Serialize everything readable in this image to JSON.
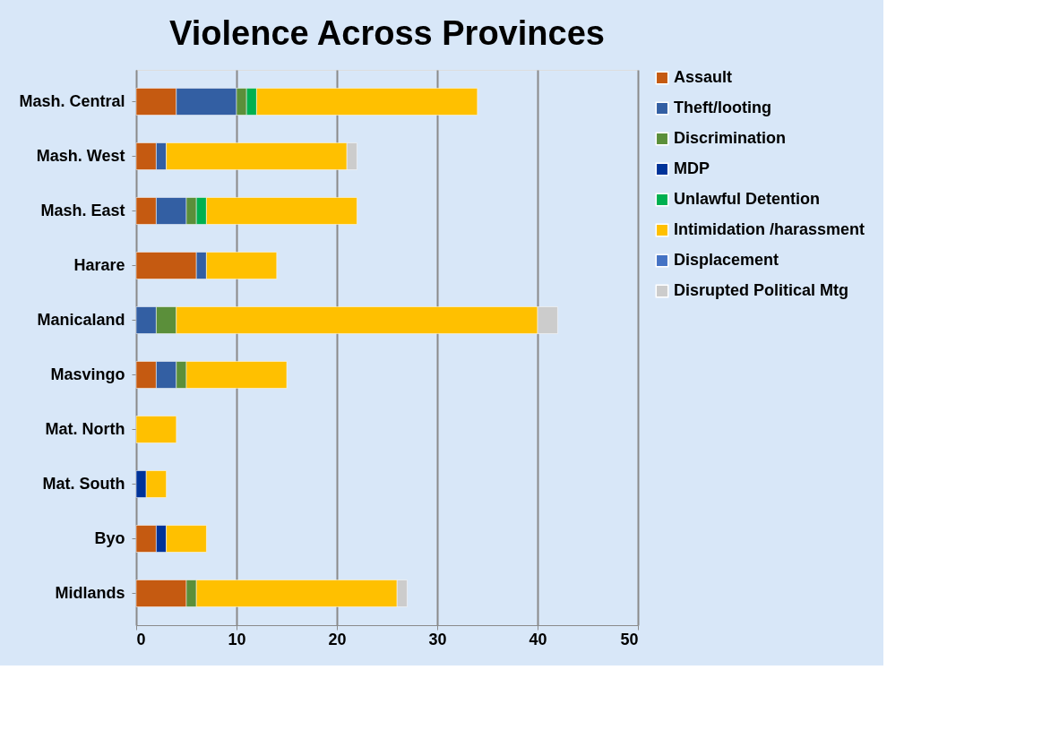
{
  "chart_data": {
    "type": "bar",
    "orientation": "horizontal",
    "stacked": true,
    "title": "Violence Across Provinces",
    "categories": [
      "Mash. Central",
      "Mash. West",
      "Mash. East",
      "Harare",
      "Manicaland",
      "Masvingo",
      "Mat. North",
      "Mat. South",
      "Byo",
      "Midlands"
    ],
    "series": [
      {
        "name": "Assault",
        "color": "#c55a11",
        "values": [
          4,
          2,
          2,
          6,
          null,
          2,
          null,
          null,
          2,
          5
        ]
      },
      {
        "name": "Theft/looting",
        "color": "#335fa3",
        "values": [
          6,
          1,
          3,
          1,
          2,
          2,
          null,
          null,
          null,
          null
        ]
      },
      {
        "name": "Discrimination",
        "color": "#5b8f3a",
        "values": [
          1,
          null,
          1,
          null,
          2,
          1,
          null,
          null,
          null,
          1
        ]
      },
      {
        "name": "MDP",
        "color": "#003399",
        "values": [
          null,
          null,
          null,
          null,
          null,
          null,
          null,
          1,
          1,
          null
        ]
      },
      {
        "name": "Unlawful Detention",
        "color": "#00b050",
        "values": [
          1,
          null,
          1,
          null,
          null,
          null,
          null,
          null,
          null,
          null
        ]
      },
      {
        "name": "Intimidation /harassment",
        "color": "#ffc000",
        "values": [
          22,
          18,
          15,
          7,
          36,
          10,
          4,
          2,
          4,
          20
        ]
      },
      {
        "name": "Displacement",
        "color": "#4472c4",
        "values": [
          null,
          null,
          null,
          null,
          null,
          null,
          null,
          null,
          null,
          null
        ]
      },
      {
        "name": "Disrupted Political Mtg",
        "color": "#cccccc",
        "values": [
          null,
          1,
          null,
          null,
          2,
          null,
          null,
          null,
          null,
          1
        ]
      }
    ],
    "xlim": [
      0,
      50
    ],
    "xticks": [
      0,
      10,
      20,
      30,
      40,
      50
    ],
    "grid": "x",
    "legend": "right"
  }
}
